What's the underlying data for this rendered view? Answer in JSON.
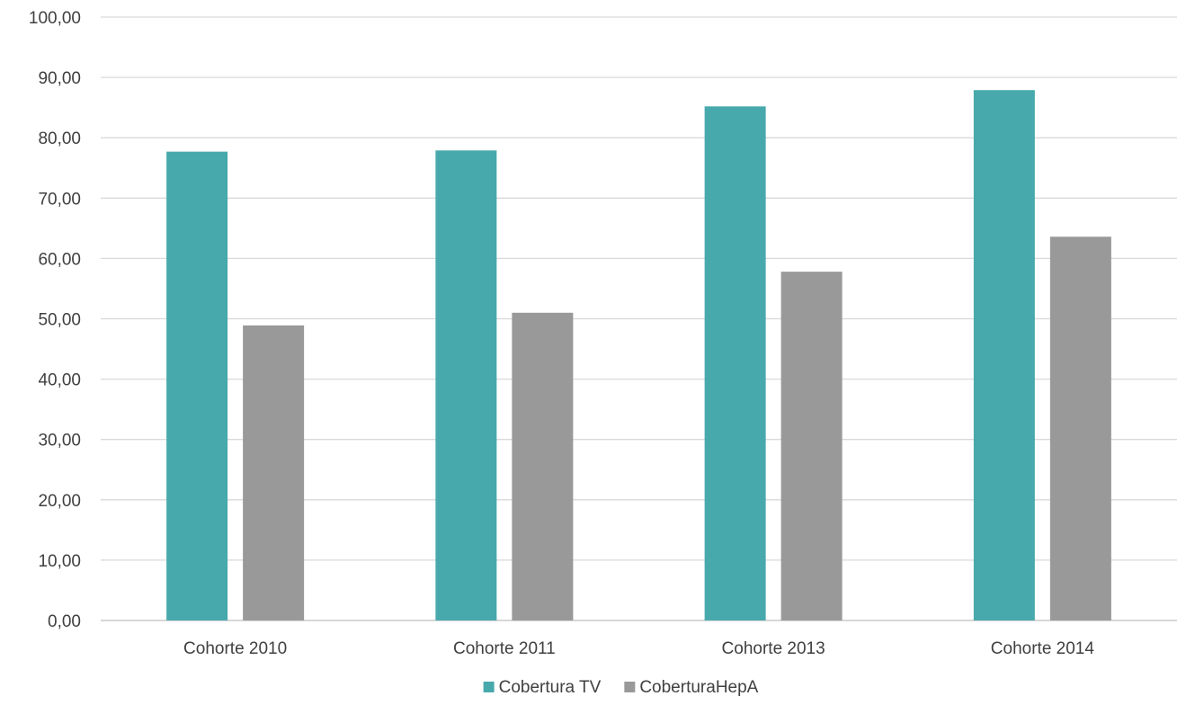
{
  "chart_data": {
    "type": "bar",
    "title": "",
    "xlabel": "",
    "ylabel": "",
    "categories": [
      "Cohorte 2010",
      "Cohorte 2011",
      "Cohorte 2013",
      "Cohorte 2014"
    ],
    "series": [
      {
        "name": "Cobertura TV",
        "color": "#48A9AD",
        "values": [
          77.7,
          77.9,
          85.2,
          87.9
        ]
      },
      {
        "name": "CoberturaHepA",
        "color": "#999999",
        "values": [
          48.9,
          51.0,
          57.8,
          63.6
        ]
      }
    ],
    "ylim": [
      0,
      100
    ],
    "yticks": [
      "0,00",
      "10,00",
      "20,00",
      "30,00",
      "40,00",
      "50,00",
      "60,00",
      "70,00",
      "80,00",
      "90,00",
      "100,00"
    ],
    "grid": true,
    "legend_position": "bottom",
    "gridline_color": "#d9d9d9",
    "text_color": "#404040"
  }
}
